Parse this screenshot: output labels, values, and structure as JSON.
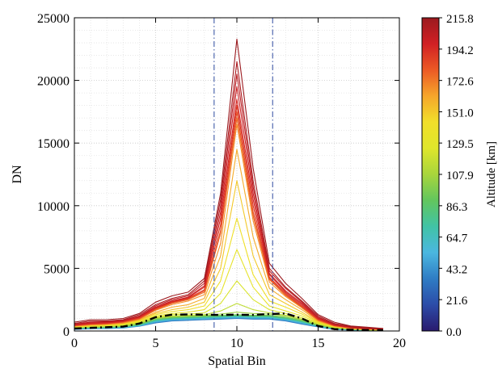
{
  "chart_data": {
    "type": "line",
    "title": "",
    "xlabel": "Spatial Bin",
    "ylabel": "DN",
    "xlim": [
      0,
      20
    ],
    "ylim": [
      0,
      25000
    ],
    "x_ticks": [
      "0",
      "5",
      "10",
      "15",
      "20"
    ],
    "y_ticks": [
      "0",
      "5000",
      "10000",
      "15000",
      "20000",
      "25000"
    ],
    "grid": "dotted minor and major",
    "x": [
      0,
      1,
      2,
      3,
      4,
      5,
      6,
      7,
      8,
      9,
      10,
      11,
      12,
      13,
      14,
      15,
      16,
      17,
      18,
      19
    ],
    "vertical_lines": [
      8.6,
      12.2
    ],
    "series": [
      {
        "altitude_km": 215.8,
        "values": [
          700,
          900,
          900,
          1000,
          1400,
          2300,
          2800,
          3100,
          4200,
          11000,
          23300,
          13000,
          5400,
          3800,
          2600,
          1300,
          700,
          400,
          300,
          200
        ]
      },
      {
        "altitude_km": 210.0,
        "values": [
          600,
          800,
          800,
          900,
          1300,
          2100,
          2600,
          2900,
          4000,
          10500,
          21500,
          12000,
          5000,
          3500,
          2400,
          1200,
          600,
          350,
          250,
          200
        ]
      },
      {
        "altitude_km": 205.0,
        "values": [
          550,
          700,
          750,
          850,
          1200,
          2000,
          2500,
          2800,
          3800,
          10000,
          20500,
          11500,
          4800,
          3400,
          2300,
          1100,
          550,
          300,
          250,
          180
        ]
      },
      {
        "altitude_km": 200.0,
        "values": [
          500,
          650,
          700,
          800,
          1150,
          1900,
          2400,
          2700,
          3600,
          9500,
          19500,
          11000,
          4600,
          3200,
          2200,
          1050,
          500,
          300,
          220,
          160
        ]
      },
      {
        "altitude_km": 196.0,
        "values": [
          480,
          600,
          650,
          780,
          1100,
          1850,
          2350,
          2650,
          3500,
          9000,
          18500,
          10500,
          4500,
          3100,
          2100,
          1000,
          480,
          280,
          200,
          150
        ]
      },
      {
        "altitude_km": 190.0,
        "values": [
          450,
          580,
          620,
          750,
          1050,
          1800,
          2300,
          2600,
          3300,
          8500,
          18000,
          10000,
          4300,
          3000,
          2000,
          950,
          450,
          260,
          190,
          140
        ]
      },
      {
        "altitude_km": 184.0,
        "values": [
          430,
          550,
          600,
          720,
          1000,
          1750,
          2250,
          2550,
          3200,
          8000,
          17500,
          9500,
          4200,
          2900,
          1950,
          900,
          430,
          250,
          180,
          130
        ]
      },
      {
        "altitude_km": 176.0,
        "values": [
          420,
          530,
          580,
          700,
          980,
          1700,
          2200,
          2500,
          3100,
          7800,
          17000,
          9200,
          4100,
          2850,
          1900,
          880,
          420,
          240,
          170,
          120
        ]
      },
      {
        "altitude_km": 168.0,
        "values": [
          400,
          500,
          550,
          650,
          950,
          1650,
          2100,
          2400,
          2900,
          7000,
          16500,
          8800,
          3900,
          2750,
          1850,
          850,
          400,
          230,
          160,
          110
        ]
      },
      {
        "altitude_km": 160.0,
        "values": [
          380,
          480,
          520,
          620,
          900,
          1500,
          1900,
          2100,
          2600,
          6000,
          14500,
          7500,
          3400,
          2500,
          1700,
          800,
          380,
          220,
          150,
          100
        ]
      },
      {
        "altitude_km": 151.0,
        "values": [
          360,
          450,
          500,
          600,
          850,
          1400,
          1700,
          1900,
          2300,
          5000,
          12000,
          6000,
          2900,
          2200,
          1500,
          750,
          360,
          200,
          140,
          100
        ]
      },
      {
        "altitude_km": 142.0,
        "values": [
          340,
          420,
          470,
          560,
          800,
          1300,
          1550,
          1700,
          2000,
          4000,
          9000,
          4500,
          2400,
          1900,
          1350,
          700,
          340,
          190,
          130,
          90
        ]
      },
      {
        "altitude_km": 133.0,
        "values": [
          320,
          400,
          440,
          520,
          750,
          1200,
          1400,
          1500,
          1700,
          3000,
          6500,
          3500,
          2000,
          1600,
          1200,
          650,
          320,
          180,
          120,
          80
        ]
      },
      {
        "altitude_km": 124.0,
        "values": [
          300,
          380,
          410,
          480,
          700,
          1100,
          1300,
          1350,
          1450,
          2200,
          4000,
          2500,
          1700,
          1400,
          1050,
          600,
          300,
          170,
          110,
          80
        ]
      },
      {
        "altitude_km": 115.0,
        "values": [
          280,
          350,
          380,
          440,
          650,
          1050,
          1200,
          1250,
          1300,
          1600,
          2200,
          1700,
          1450,
          1250,
          950,
          550,
          280,
          160,
          100,
          70
        ]
      },
      {
        "altitude_km": 105.0,
        "values": [
          260,
          320,
          350,
          400,
          600,
          1000,
          1150,
          1200,
          1250,
          1350,
          1500,
          1400,
          1350,
          1200,
          900,
          500,
          260,
          150,
          100,
          60
        ]
      },
      {
        "altitude_km": 95.0,
        "values": [
          240,
          300,
          320,
          380,
          560,
          950,
          1100,
          1150,
          1200,
          1250,
          1300,
          1250,
          1250,
          1100,
          850,
          480,
          240,
          140,
          90,
          60
        ]
      },
      {
        "altitude_km": 85.0,
        "values": [
          220,
          280,
          300,
          350,
          520,
          900,
          1050,
          1100,
          1150,
          1200,
          1250,
          1200,
          1200,
          1050,
          800,
          450,
          220,
          130,
          90,
          50
        ]
      },
      {
        "altitude_km": 75.0,
        "values": [
          200,
          260,
          280,
          330,
          480,
          850,
          1000,
          1050,
          1100,
          1150,
          1200,
          1150,
          1150,
          1000,
          750,
          420,
          200,
          120,
          80,
          50
        ]
      },
      {
        "altitude_km": 65.0,
        "values": [
          180,
          240,
          260,
          300,
          450,
          800,
          950,
          1000,
          1050,
          1100,
          1150,
          1100,
          1100,
          950,
          700,
          400,
          180,
          110,
          70,
          40
        ]
      },
      {
        "altitude_km": 55.0,
        "values": [
          160,
          220,
          240,
          280,
          420,
          750,
          900,
          950,
          1000,
          1050,
          1100,
          1050,
          1050,
          900,
          650,
          380,
          160,
          100,
          60,
          40
        ]
      },
      {
        "altitude_km": 45.0,
        "values": [
          140,
          200,
          220,
          260,
          400,
          700,
          850,
          900,
          950,
          1000,
          1050,
          1000,
          1000,
          850,
          600,
          350,
          140,
          90,
          60,
          30
        ]
      },
      {
        "altitude_km": 35.0,
        "values": [
          120,
          180,
          200,
          240,
          380,
          650,
          800,
          850,
          900,
          950,
          1000,
          950,
          950,
          800,
          550,
          320,
          120,
          80,
          50,
          30
        ]
      }
    ],
    "mean_line": {
      "style": "dash-dot",
      "values": [
        200,
        250,
        300,
        350,
        600,
        1100,
        1300,
        1320,
        1300,
        1280,
        1300,
        1280,
        1350,
        1400,
        1000,
        400,
        150,
        100,
        80,
        60
      ]
    },
    "colorbar": {
      "label": "Altitude [km]",
      "min": 0.0,
      "max": 215.8,
      "ticks": [
        "0.0",
        "21.6",
        "43.2",
        "64.7",
        "86.3",
        "107.9",
        "129.5",
        "151.0",
        "172.6",
        "194.2",
        "215.8"
      ],
      "colors": [
        "#2a1a6e",
        "#2c4ca8",
        "#2f7cc4",
        "#4bb7e0",
        "#41c3a6",
        "#62c65e",
        "#a8d53c",
        "#dfe62b",
        "#f1df2a",
        "#f6a62b",
        "#ec5a25",
        "#d12024",
        "#9b1a1f"
      ]
    }
  }
}
